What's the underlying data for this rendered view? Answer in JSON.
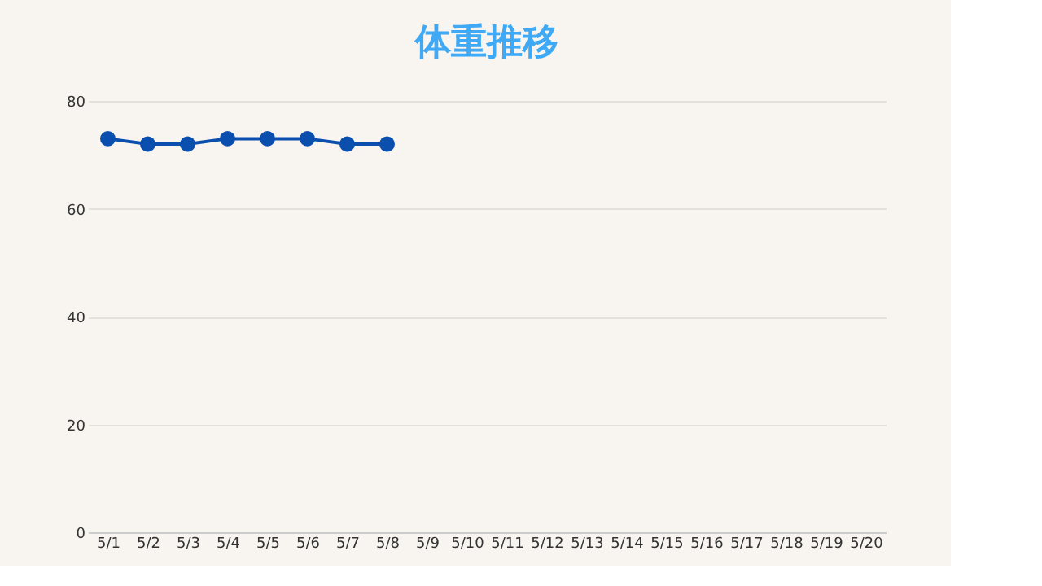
{
  "chart_data": {
    "type": "line",
    "title": "体重推移",
    "categories": [
      "5/1",
      "5/2",
      "5/3",
      "5/4",
      "5/5",
      "5/6",
      "5/7",
      "5/8",
      "5/9",
      "5/10",
      "5/11",
      "5/12",
      "5/13",
      "5/14",
      "5/15",
      "5/16",
      "5/17",
      "5/18",
      "5/19",
      "5/20"
    ],
    "series": [
      {
        "color": "#0b4fae",
        "values": [
          73,
          72,
          72,
          73,
          73,
          73,
          72,
          72,
          null,
          null,
          null,
          null,
          null,
          null,
          null,
          null,
          null,
          null,
          null,
          null
        ]
      }
    ],
    "ylim": [
      0,
      80
    ],
    "yticks": [
      0,
      20,
      40,
      60,
      80
    ],
    "grid": "y",
    "marker": "circle",
    "line_style": "solid"
  }
}
